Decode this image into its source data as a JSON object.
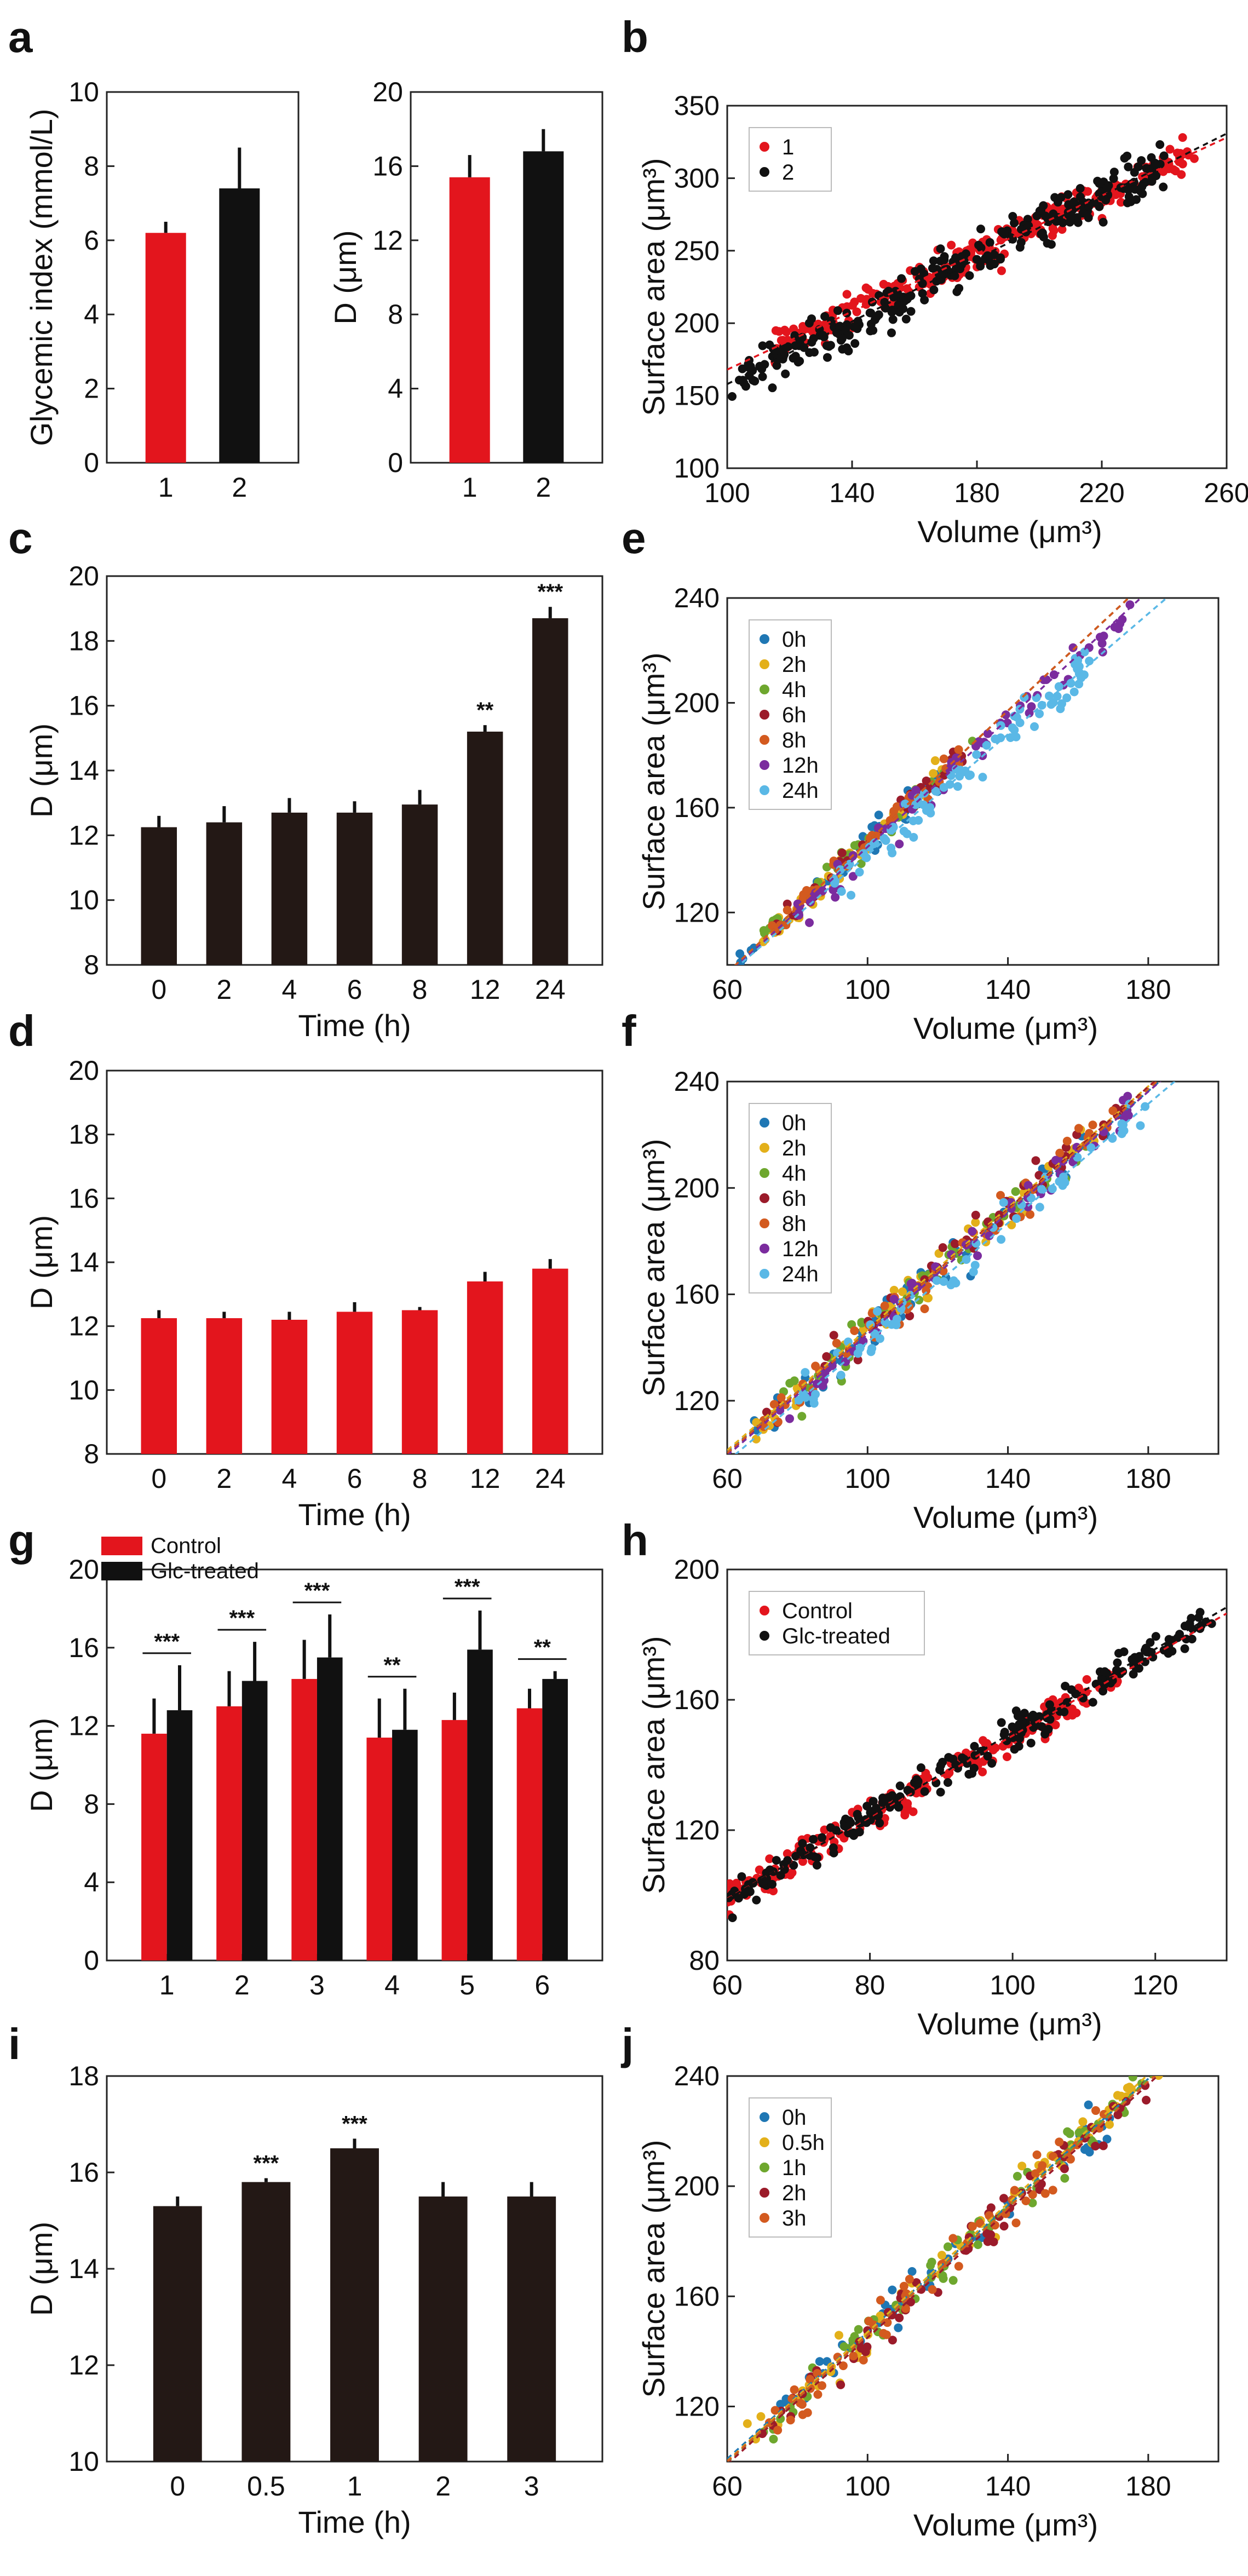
{
  "colors": {
    "red": "#e3151d",
    "black": "#111111",
    "darkbar": "#231815",
    "t0": "#1f77b4",
    "t2": "#e3b01a",
    "t4": "#6ea72e",
    "t6": "#9b1b2a",
    "t8": "#d35a1f",
    "t12": "#7b2c9e",
    "t24": "#5ab8e6"
  },
  "chart_data": [
    {
      "id": "a1",
      "panel_label": "a",
      "type": "bar",
      "categories": [
        "1",
        "2"
      ],
      "values": [
        6.2,
        7.4
      ],
      "errors": [
        0.3,
        1.1
      ],
      "colors": [
        "red",
        "black"
      ],
      "xlabel": "",
      "ylabel": "Glycemic index (mmol/L)",
      "ylim": [
        0,
        10
      ],
      "yticks": [
        0,
        2,
        4,
        6,
        8,
        10
      ],
      "sig": []
    },
    {
      "id": "a2",
      "panel_label": "",
      "type": "bar",
      "categories": [
        "1",
        "2"
      ],
      "values": [
        15.4,
        16.8
      ],
      "errors": [
        1.2,
        1.2
      ],
      "colors": [
        "red",
        "black"
      ],
      "xlabel": "",
      "ylabel": "D (μm)",
      "ylim": [
        0,
        20
      ],
      "yticks": [
        0,
        4,
        8,
        12,
        16,
        20
      ],
      "sig": []
    },
    {
      "id": "b",
      "panel_label": "b",
      "type": "scatter",
      "xlabel": "Volume (μm³)",
      "ylabel": "Surface area (μm³)",
      "xlim": [
        100,
        260
      ],
      "ylim": [
        100,
        350
      ],
      "xticks": [
        100,
        140,
        180,
        220,
        260
      ],
      "yticks": [
        100,
        150,
        200,
        250,
        300,
        350
      ],
      "legend_position": "top-left",
      "series": [
        {
          "name": "1",
          "color": "red",
          "x_range": [
            115,
            250
          ],
          "n": 260,
          "fit": {
            "slope": 1.0,
            "intercept": 68
          },
          "noise": 10
        },
        {
          "name": "2",
          "color": "black",
          "x_range": [
            100,
            240
          ],
          "n": 300,
          "fit": {
            "slope": 1.08,
            "intercept": 50
          },
          "noise": 13
        }
      ]
    },
    {
      "id": "c",
      "panel_label": "c",
      "type": "bar",
      "categories": [
        "0",
        "2",
        "4",
        "6",
        "8",
        "12",
        "24"
      ],
      "values": [
        12.25,
        12.4,
        12.7,
        12.7,
        12.95,
        15.2,
        18.7
      ],
      "errors": [
        0.35,
        0.5,
        0.45,
        0.35,
        0.45,
        0.2,
        0.35
      ],
      "colors": [
        "darkbar",
        "darkbar",
        "darkbar",
        "darkbar",
        "darkbar",
        "darkbar",
        "darkbar"
      ],
      "xlabel": "Time (h)",
      "ylabel": "D (μm)",
      "ylim": [
        8,
        20
      ],
      "yticks": [
        8,
        10,
        12,
        14,
        16,
        18,
        20
      ],
      "sig": [
        {
          "index": 5,
          "text": "**"
        },
        {
          "index": 6,
          "text": "***"
        }
      ]
    },
    {
      "id": "e",
      "panel_label": "e",
      "type": "scatter",
      "xlabel": "Volume (μm³)",
      "ylabel": "Surface area (μm³)",
      "xlim": [
        60,
        200
      ],
      "ylim": [
        100,
        240
      ],
      "xticks": [
        60,
        100,
        140,
        180
      ],
      "yticks": [
        120,
        160,
        200,
        240
      ],
      "legend_position": "top-left",
      "series": [
        {
          "name": "0h",
          "color": "t0",
          "x_range": [
            62,
            120
          ],
          "n": 35,
          "fit": {
            "slope": 1.25,
            "intercept": 22
          },
          "noise": 4
        },
        {
          "name": "2h",
          "color": "t2",
          "x_range": [
            70,
            125
          ],
          "n": 40,
          "fit": {
            "slope": 1.25,
            "intercept": 22
          },
          "noise": 4
        },
        {
          "name": "4h",
          "color": "t4",
          "x_range": [
            70,
            130
          ],
          "n": 40,
          "fit": {
            "slope": 1.25,
            "intercept": 22
          },
          "noise": 4
        },
        {
          "name": "6h",
          "color": "t6",
          "x_range": [
            72,
            128
          ],
          "n": 40,
          "fit": {
            "slope": 1.25,
            "intercept": 22
          },
          "noise": 4
        },
        {
          "name": "8h",
          "color": "t8",
          "x_range": [
            72,
            130
          ],
          "n": 40,
          "fit": {
            "slope": 1.25,
            "intercept": 22
          },
          "noise": 4
        },
        {
          "name": "12h",
          "color": "t12",
          "x_range": [
            80,
            175
          ],
          "n": 60,
          "fit": {
            "slope": 1.22,
            "intercept": 23
          },
          "noise": 6
        },
        {
          "name": "24h",
          "color": "t24",
          "x_range": [
            90,
            165
          ],
          "n": 90,
          "fit": {
            "slope": 1.15,
            "intercept": 27
          },
          "noise": 6
        }
      ]
    },
    {
      "id": "d",
      "panel_label": "d",
      "type": "bar",
      "categories": [
        "0",
        "2",
        "4",
        "6",
        "8",
        "12",
        "24"
      ],
      "values": [
        12.25,
        12.25,
        12.2,
        12.45,
        12.5,
        13.4,
        13.8
      ],
      "errors": [
        0.25,
        0.2,
        0.25,
        0.3,
        0.1,
        0.3,
        0.3
      ],
      "colors": [
        "red",
        "red",
        "red",
        "red",
        "red",
        "red",
        "red"
      ],
      "xlabel": "Time (h)",
      "ylabel": "D (μm)",
      "ylim": [
        8,
        20
      ],
      "yticks": [
        8,
        10,
        12,
        14,
        16,
        18,
        20
      ],
      "sig": []
    },
    {
      "id": "f",
      "panel_label": "f",
      "type": "scatter",
      "xlabel": "Volume (μm³)",
      "ylabel": "Surface area (μm³)",
      "xlim": [
        60,
        200
      ],
      "ylim": [
        100,
        240
      ],
      "xticks": [
        60,
        100,
        140,
        180
      ],
      "yticks": [
        120,
        160,
        200,
        240
      ],
      "legend_position": "top-left",
      "series": [
        {
          "name": "0h",
          "color": "t0",
          "x_range": [
            65,
            170
          ],
          "n": 50,
          "fit": {
            "slope": 1.13,
            "intercept": 33
          },
          "noise": 6
        },
        {
          "name": "2h",
          "color": "t2",
          "x_range": [
            65,
            165
          ],
          "n": 50,
          "fit": {
            "slope": 1.14,
            "intercept": 33
          },
          "noise": 6
        },
        {
          "name": "4h",
          "color": "t4",
          "x_range": [
            70,
            165
          ],
          "n": 50,
          "fit": {
            "slope": 1.14,
            "intercept": 32
          },
          "noise": 6
        },
        {
          "name": "6h",
          "color": "t6",
          "x_range": [
            70,
            175
          ],
          "n": 50,
          "fit": {
            "slope": 1.15,
            "intercept": 31
          },
          "noise": 6
        },
        {
          "name": "8h",
          "color": "t8",
          "x_range": [
            70,
            170
          ],
          "n": 50,
          "fit": {
            "slope": 1.14,
            "intercept": 32
          },
          "noise": 6
        },
        {
          "name": "12h",
          "color": "t12",
          "x_range": [
            75,
            175
          ],
          "n": 50,
          "fit": {
            "slope": 1.14,
            "intercept": 31
          },
          "noise": 6
        },
        {
          "name": "24h",
          "color": "t24",
          "x_range": [
            80,
            180
          ],
          "n": 60,
          "fit": {
            "slope": 1.12,
            "intercept": 30
          },
          "noise": 6
        }
      ]
    },
    {
      "id": "g",
      "panel_label": "g",
      "type": "bar",
      "categories": [
        "1",
        "2",
        "3",
        "4",
        "5",
        "6"
      ],
      "series": [
        {
          "name": "Control",
          "color": "red",
          "values": [
            11.6,
            13.0,
            14.4,
            11.4,
            12.3,
            12.9
          ],
          "errors": [
            1.8,
            1.8,
            2.0,
            2.0,
            1.4,
            1.0
          ]
        },
        {
          "name": "Glc-treated",
          "color": "black",
          "values": [
            12.8,
            14.3,
            15.5,
            11.8,
            15.9,
            14.4
          ],
          "errors": [
            2.3,
            2.0,
            2.2,
            2.1,
            2.0,
            0.4
          ]
        }
      ],
      "xlabel": "",
      "ylabel": "D (μm)",
      "ylim": [
        0,
        20
      ],
      "yticks": [
        0,
        4,
        8,
        12,
        16,
        20
      ],
      "legend_position": "top-left",
      "sig": [
        {
          "index": 0,
          "text": "***"
        },
        {
          "index": 1,
          "text": "***"
        },
        {
          "index": 2,
          "text": "***"
        },
        {
          "index": 3,
          "text": "**"
        },
        {
          "index": 4,
          "text": "***"
        },
        {
          "index": 5,
          "text": "**"
        }
      ]
    },
    {
      "id": "h",
      "panel_label": "h",
      "type": "scatter",
      "xlabel": "Volume (μm³)",
      "ylabel": "Surface area (μm³)",
      "xlim": [
        60,
        130
      ],
      "ylim": [
        80,
        200
      ],
      "xticks": [
        60,
        80,
        100,
        120
      ],
      "yticks": [
        80,
        120,
        160,
        200
      ],
      "legend_position": "top-left",
      "series": [
        {
          "name": "Control",
          "color": "red",
          "x_range": [
            60,
            115
          ],
          "n": 220,
          "fit": {
            "slope": 1.25,
            "intercept": 24
          },
          "noise": 4
        },
        {
          "name": "Glc-treated",
          "color": "black",
          "x_range": [
            60,
            128
          ],
          "n": 220,
          "fit": {
            "slope": 1.28,
            "intercept": 22
          },
          "noise": 4
        }
      ]
    },
    {
      "id": "i",
      "panel_label": "i",
      "type": "bar",
      "categories": [
        "0",
        "0.5",
        "1",
        "2",
        "3"
      ],
      "values": [
        15.3,
        15.8,
        16.5,
        15.5,
        15.5
      ],
      "errors": [
        0.2,
        0.08,
        0.2,
        0.3,
        0.3
      ],
      "colors": [
        "darkbar",
        "darkbar",
        "darkbar",
        "darkbar",
        "darkbar"
      ],
      "xlabel": "Time (h)",
      "ylabel": "D (μm)",
      "ylim": [
        10,
        18
      ],
      "yticks": [
        10,
        12,
        14,
        16,
        18
      ],
      "sig": [
        {
          "index": 1,
          "text": "***"
        },
        {
          "index": 2,
          "text": "***"
        }
      ]
    },
    {
      "id": "j",
      "panel_label": "j",
      "type": "scatter",
      "xlabel": "Volume (μm³)",
      "ylabel": "Surface area (μm³)",
      "xlim": [
        60,
        200
      ],
      "ylim": [
        100,
        240
      ],
      "xticks": [
        60,
        100,
        140,
        180
      ],
      "yticks": [
        120,
        160,
        200,
        240
      ],
      "legend_position": "top-left",
      "series": [
        {
          "name": "0h",
          "color": "t0",
          "x_range": [
            65,
            170
          ],
          "n": 50,
          "fit": {
            "slope": 1.15,
            "intercept": 32
          },
          "noise": 6
        },
        {
          "name": "0.5h",
          "color": "t2",
          "x_range": [
            65,
            185
          ],
          "n": 60,
          "fit": {
            "slope": 1.17,
            "intercept": 30
          },
          "noise": 6
        },
        {
          "name": "1h",
          "color": "t4",
          "x_range": [
            70,
            180
          ],
          "n": 60,
          "fit": {
            "slope": 1.16,
            "intercept": 30
          },
          "noise": 6
        },
        {
          "name": "2h",
          "color": "t6",
          "x_range": [
            70,
            180
          ],
          "n": 60,
          "fit": {
            "slope": 1.15,
            "intercept": 30
          },
          "noise": 6
        },
        {
          "name": "3h",
          "color": "t8",
          "x_range": [
            70,
            175
          ],
          "n": 60,
          "fit": {
            "slope": 1.15,
            "intercept": 31
          },
          "noise": 6
        }
      ]
    }
  ]
}
